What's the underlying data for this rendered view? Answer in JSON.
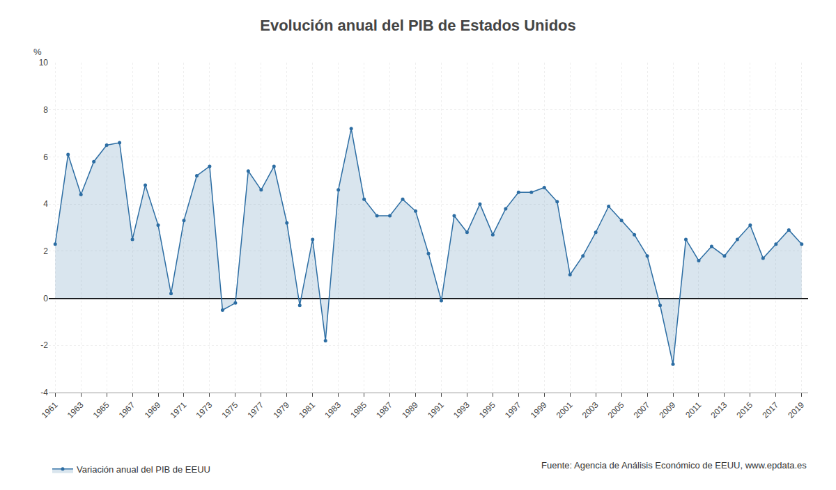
{
  "chart_data": {
    "type": "area",
    "title": "Evolución anual del PIB de Estados Unidos",
    "ylabel": "%",
    "annotations": [
      "Fuente: Agencia de Análisis Económico de EEUU, www.epdata.es"
    ],
    "x": [
      1961,
      1962,
      1963,
      1964,
      1965,
      1966,
      1967,
      1968,
      1969,
      1970,
      1971,
      1972,
      1973,
      1974,
      1975,
      1976,
      1977,
      1978,
      1979,
      1980,
      1981,
      1982,
      1983,
      1984,
      1985,
      1986,
      1987,
      1988,
      1989,
      1990,
      1991,
      1992,
      1993,
      1994,
      1995,
      1996,
      1997,
      1998,
      1999,
      2000,
      2001,
      2002,
      2003,
      2004,
      2005,
      2006,
      2007,
      2008,
      2009,
      2010,
      2011,
      2012,
      2013,
      2014,
      2015,
      2016,
      2017,
      2018,
      2019
    ],
    "series": [
      {
        "name": "Variación anual del PIB de EEUU",
        "color": "#2c6da3",
        "marker": "circle",
        "values": [
          2.3,
          6.1,
          4.4,
          5.8,
          6.5,
          6.6,
          2.5,
          4.8,
          3.1,
          0.2,
          3.3,
          5.2,
          5.6,
          -0.5,
          -0.2,
          5.4,
          4.6,
          5.6,
          3.2,
          -0.3,
          2.5,
          -1.8,
          4.6,
          7.2,
          4.2,
          3.5,
          3.5,
          4.2,
          3.7,
          1.9,
          -0.1,
          3.5,
          2.8,
          4.0,
          2.7,
          3.8,
          4.5,
          4.5,
          4.7,
          4.1,
          1.0,
          1.8,
          2.8,
          3.9,
          3.3,
          2.7,
          1.8,
          -0.3,
          -2.8,
          2.5,
          1.6,
          2.2,
          1.8,
          2.5,
          3.1,
          1.7,
          2.3,
          2.9,
          2.3
        ]
      }
    ],
    "xlim": [
      1960.5,
      2019.5
    ],
    "xticks": [
      1961,
      1963,
      1965,
      1967,
      1969,
      1971,
      1973,
      1975,
      1977,
      1979,
      1981,
      1983,
      1985,
      1987,
      1989,
      1991,
      1993,
      1995,
      1997,
      1999,
      2001,
      2003,
      2005,
      2007,
      2009,
      2011,
      2013,
      2015,
      2017,
      2019
    ],
    "ylim": [
      -4,
      10
    ],
    "yticks": [
      -4,
      -2,
      0,
      2,
      4,
      6,
      8,
      10
    ],
    "grid": true,
    "legend": "bottom"
  }
}
